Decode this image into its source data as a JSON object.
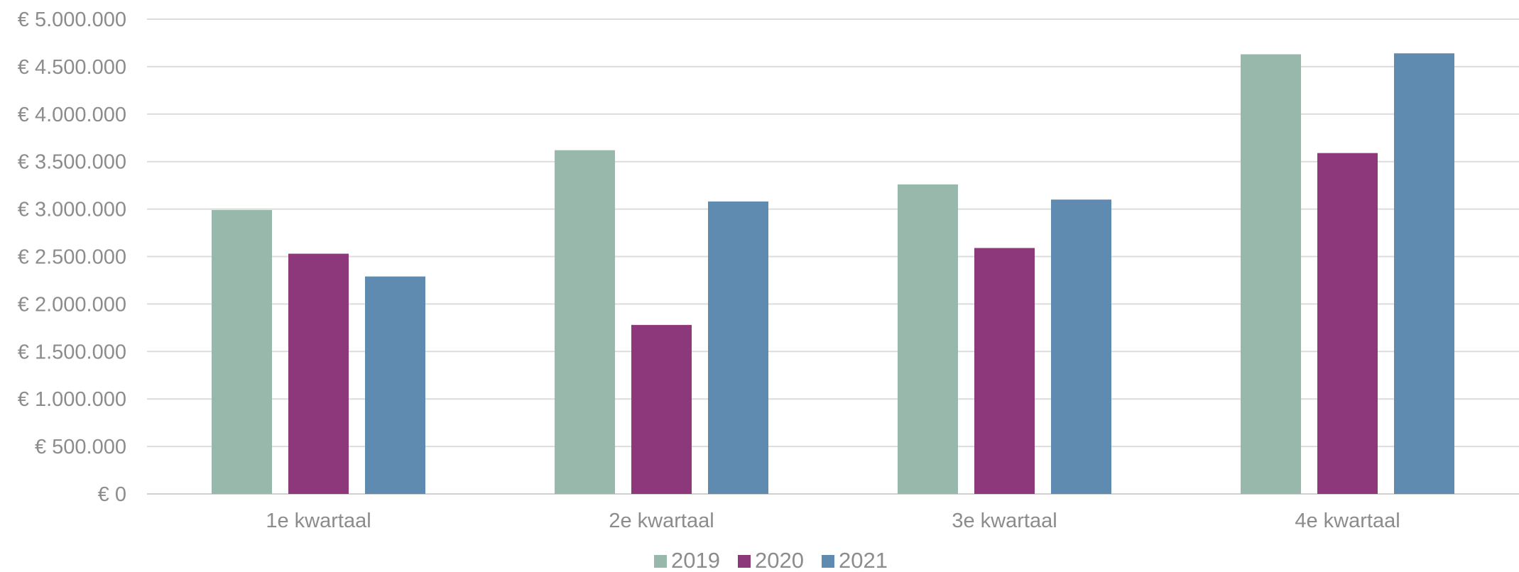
{
  "chart_data": {
    "type": "bar",
    "categories": [
      "1e kwartaal",
      "2e kwartaal",
      "3e kwartaal",
      "4e kwartaal"
    ],
    "series": [
      {
        "name": "2019",
        "color": "#98b8ab",
        "values": [
          2990000,
          3620000,
          3260000,
          4630000
        ]
      },
      {
        "name": "2020",
        "color": "#8e387c",
        "values": [
          2530000,
          1780000,
          2590000,
          3590000
        ]
      },
      {
        "name": "2021",
        "color": "#5f8bb1",
        "values": [
          2290000,
          3080000,
          3100000,
          4640000
        ]
      }
    ],
    "ylim": [
      0,
      5000000
    ],
    "y_ticks": [
      0,
      500000,
      1000000,
      1500000,
      2000000,
      2500000,
      3000000,
      3500000,
      4000000,
      4500000,
      5000000
    ],
    "y_tick_labels": [
      "€ 0",
      "€ 500.000",
      "€ 1.000.000",
      "€ 1.500.000",
      "€ 2.000.000",
      "€ 2.500.000",
      "€ 3.000.000",
      "€ 3.500.000",
      "€ 4.000.000",
      "€ 4.500.000",
      "€ 5.000.000"
    ],
    "grid": true,
    "legend": "bottom-center",
    "title": "",
    "xlabel": "",
    "ylabel": ""
  }
}
